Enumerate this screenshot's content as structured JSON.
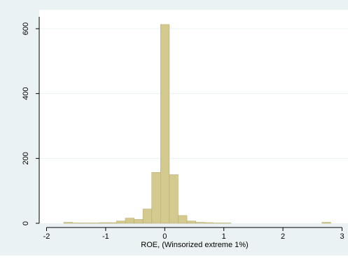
{
  "colors": {
    "outer_background": "#eaf2f3",
    "plot_background": "#ffffff",
    "bar_fill": "#d4c98e",
    "bar_stroke": "#b8ad72",
    "gridline": "#eaf2f3",
    "axis": "#000000"
  },
  "chart_data": {
    "type": "bar",
    "subtype": "histogram",
    "title": "",
    "xlabel": "ROE, (Winsorized extreme 1%)",
    "ylabel": "",
    "xlim": [
      -2.05,
      3.0
    ],
    "ylim": [
      0,
      640
    ],
    "x_ticks": [
      -2,
      -1,
      0,
      1,
      2,
      3
    ],
    "x_tick_labels": [
      "-2",
      "-1",
      "0",
      "1",
      "2",
      "3"
    ],
    "y_ticks": [
      0,
      200,
      400,
      600
    ],
    "y_tick_labels": [
      "0",
      "200",
      "400",
      "600"
    ],
    "grid": "horizontal",
    "bin_width": 0.149,
    "bins": [
      {
        "x0": -1.71,
        "x1": -1.561,
        "count": 3
      },
      {
        "x0": -1.561,
        "x1": -1.412,
        "count": 1
      },
      {
        "x0": -1.412,
        "x1": -1.263,
        "count": 1
      },
      {
        "x0": -1.263,
        "x1": -1.114,
        "count": 1
      },
      {
        "x0": -1.114,
        "x1": -0.965,
        "count": 2
      },
      {
        "x0": -0.965,
        "x1": -0.816,
        "count": 2
      },
      {
        "x0": -0.816,
        "x1": -0.667,
        "count": 7
      },
      {
        "x0": -0.667,
        "x1": -0.518,
        "count": 16
      },
      {
        "x0": -0.518,
        "x1": -0.369,
        "count": 12
      },
      {
        "x0": -0.369,
        "x1": -0.22,
        "count": 44
      },
      {
        "x0": -0.22,
        "x1": -0.071,
        "count": 157
      },
      {
        "x0": -0.071,
        "x1": 0.078,
        "count": 613
      },
      {
        "x0": 0.078,
        "x1": 0.227,
        "count": 150
      },
      {
        "x0": 0.227,
        "x1": 0.376,
        "count": 24
      },
      {
        "x0": 0.376,
        "x1": 0.525,
        "count": 7
      },
      {
        "x0": 0.525,
        "x1": 0.674,
        "count": 3
      },
      {
        "x0": 0.674,
        "x1": 0.823,
        "count": 2
      },
      {
        "x0": 0.823,
        "x1": 0.972,
        "count": 1
      },
      {
        "x0": 0.972,
        "x1": 1.121,
        "count": 1
      },
      {
        "x0": 2.66,
        "x1": 2.809,
        "count": 3
      }
    ]
  }
}
